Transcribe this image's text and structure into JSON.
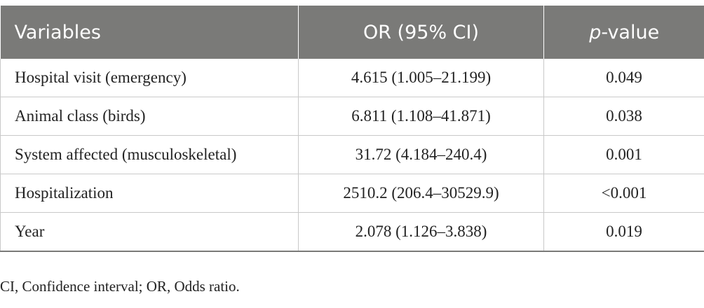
{
  "table": {
    "headers": {
      "variables": "Variables",
      "or": "OR (95% CI)",
      "p_italic": "p",
      "p_rest": "-value"
    },
    "rows": [
      {
        "variable": "Hospital visit (emergency)",
        "or": "4.615 (1.005–21.199)",
        "p": "0.049"
      },
      {
        "variable": "Animal class (birds)",
        "or": "6.811 (1.108–41.871)",
        "p": "0.038"
      },
      {
        "variable": "System affected (musculoskeletal)",
        "or": "31.72 (4.184–240.4)",
        "p": "0.001"
      },
      {
        "variable": "Hospitalization",
        "or": "2510.2 (206.4–30529.9)",
        "p": "<0.001"
      },
      {
        "variable": "Year",
        "or": "2.078 (1.126–3.838)",
        "p": "0.019"
      }
    ]
  },
  "footnote": "CI, Confidence interval; OR, Odds ratio.",
  "colors": {
    "header_bg": "#7a7a78",
    "header_text": "#ffffff",
    "rule": "#c9c9c9"
  }
}
